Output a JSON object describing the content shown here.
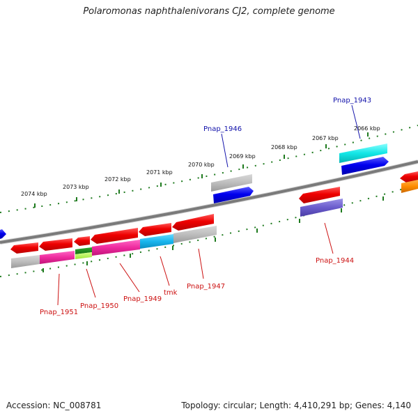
{
  "title": "Polaromonas naphthalenivorans CJ2, complete genome",
  "footer": {
    "accession": "Accession: NC_008781",
    "topology": "Topology: circular; Length: 4,410,291 bp; Genes: 4,140"
  },
  "scale_labels": [
    "2074 kbp",
    "2073 kbp",
    "2072 kbp",
    "2071 kbp",
    "2070 kbp",
    "2069 kbp",
    "2068 kbp",
    "2067 kbp",
    "2066 kbp"
  ],
  "gene_labels": [
    {
      "text": "Pnap_1946",
      "color": "#1010aa"
    },
    {
      "text": "Pnap_1943",
      "color": "#1010aa"
    },
    {
      "text": "Pnap_1951",
      "color": "#cc1010"
    },
    {
      "text": "Pnap_1950",
      "color": "#cc1010"
    },
    {
      "text": "Pnap_1949",
      "color": "#cc1010"
    },
    {
      "text": "tmk",
      "color": "#cc1010"
    },
    {
      "text": "Pnap_1947",
      "color": "#cc1010"
    },
    {
      "text": "Pnap_1944",
      "color": "#cc1010"
    }
  ],
  "colors": {
    "backbone": "#7a7a7a",
    "tick": "#1e7a1e",
    "forward_strand": "#1515e0",
    "reverse_strand": "#e01010"
  }
}
